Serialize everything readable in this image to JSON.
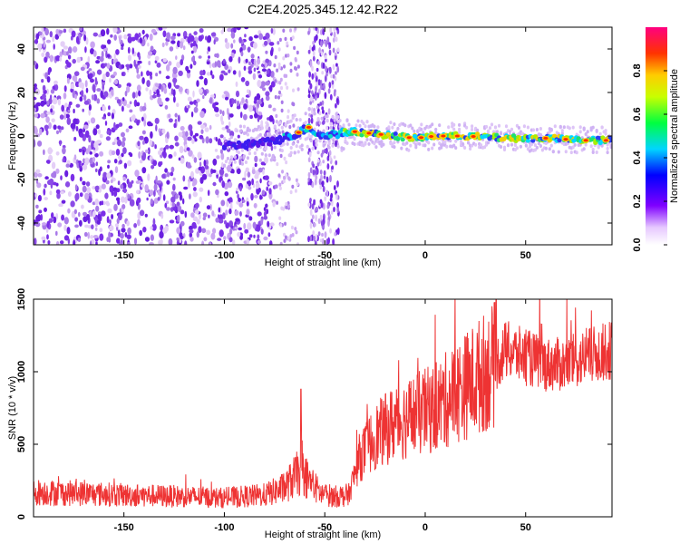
{
  "figure": {
    "title": "C2E4.2025.345.12.42.R22"
  },
  "chart_data": [
    {
      "type": "heatmap",
      "name": "spectrogram",
      "xlabel": "Height of straight line (km)",
      "ylabel": "Frequency (Hz)",
      "xlim": [
        -195,
        93
      ],
      "ylim": [
        -50,
        50
      ],
      "xticks": [
        -150,
        -100,
        -50,
        0,
        50
      ],
      "yticks": [
        -40,
        -20,
        0,
        20,
        40
      ],
      "ridge": {
        "description": "dominant spectral line (frequency vs height)",
        "x": [
          -100,
          -90,
          -80,
          -70,
          -62,
          -58,
          -52,
          -45,
          -35,
          -25,
          -15,
          -5,
          5,
          20,
          40,
          60,
          80,
          93
        ],
        "y": [
          -5,
          -4,
          -3,
          -1,
          2,
          4,
          0,
          1,
          2,
          1,
          0,
          -1,
          0,
          0,
          -1,
          -1,
          -2,
          -2
        ]
      }
    },
    {
      "type": "line",
      "name": "snr",
      "xlabel": "Height of straight line (km)",
      "ylabel": "SNR (10 * v/v)",
      "xlim": [
        -195,
        93
      ],
      "ylim": [
        0,
        1500
      ],
      "xticks": [
        -150,
        -100,
        -50,
        0,
        50
      ],
      "yticks": [
        0,
        500,
        1000,
        1500
      ],
      "color": "#ee3333",
      "trend": {
        "x": [
          -195,
          -170,
          -150,
          -120,
          -100,
          -80,
          -70,
          -62,
          -58,
          -52,
          -45,
          -38,
          -33,
          -25,
          -15,
          -5,
          5,
          15,
          25,
          35,
          40,
          50,
          60,
          70,
          80,
          93
        ],
        "y": [
          170,
          160,
          150,
          140,
          130,
          150,
          200,
          320,
          250,
          160,
          140,
          150,
          400,
          550,
          650,
          700,
          750,
          850,
          950,
          1050,
          1150,
          1100,
          1050,
          1050,
          1100,
          1150
        ]
      }
    }
  ],
  "colorbar": {
    "label": "Normalized spectral amplitude",
    "ticks": [
      "0.0",
      "0.2",
      "0.4",
      "0.6",
      "0.8"
    ],
    "range": [
      0,
      1
    ]
  }
}
